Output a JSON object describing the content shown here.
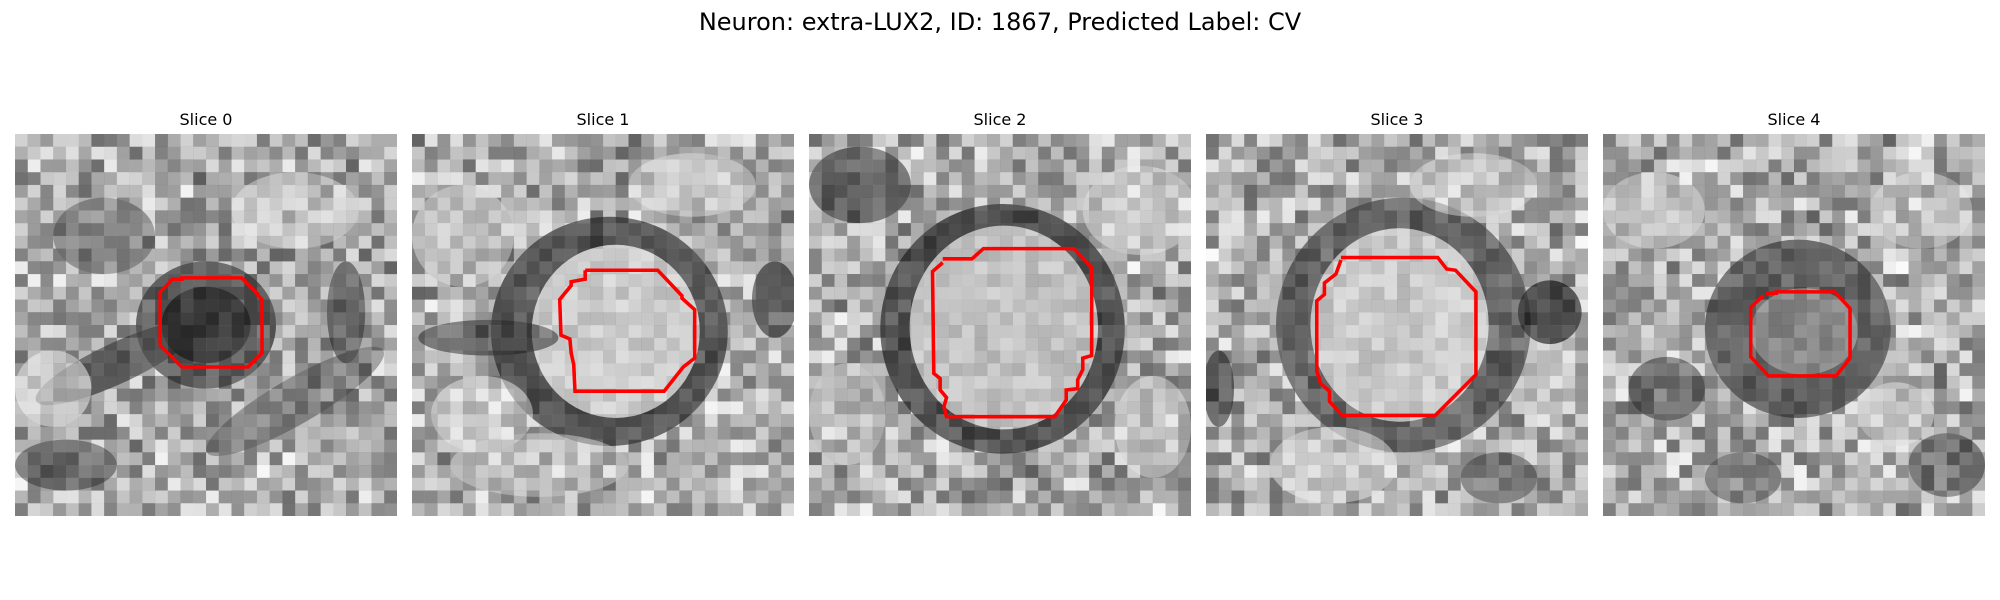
{
  "figure": {
    "title": "Neuron: extra-LUX2, ID: 1867, Predicted Label: CV"
  },
  "panels": [
    {
      "title": "Slice 0"
    },
    {
      "title": "Slice 1"
    },
    {
      "title": "Slice 2"
    },
    {
      "title": "Slice 3"
    },
    {
      "title": "Slice 4"
    }
  ],
  "colors": {
    "contour": "#ff0000",
    "background": "#ffffff",
    "image_colormap": "grayscale"
  }
}
